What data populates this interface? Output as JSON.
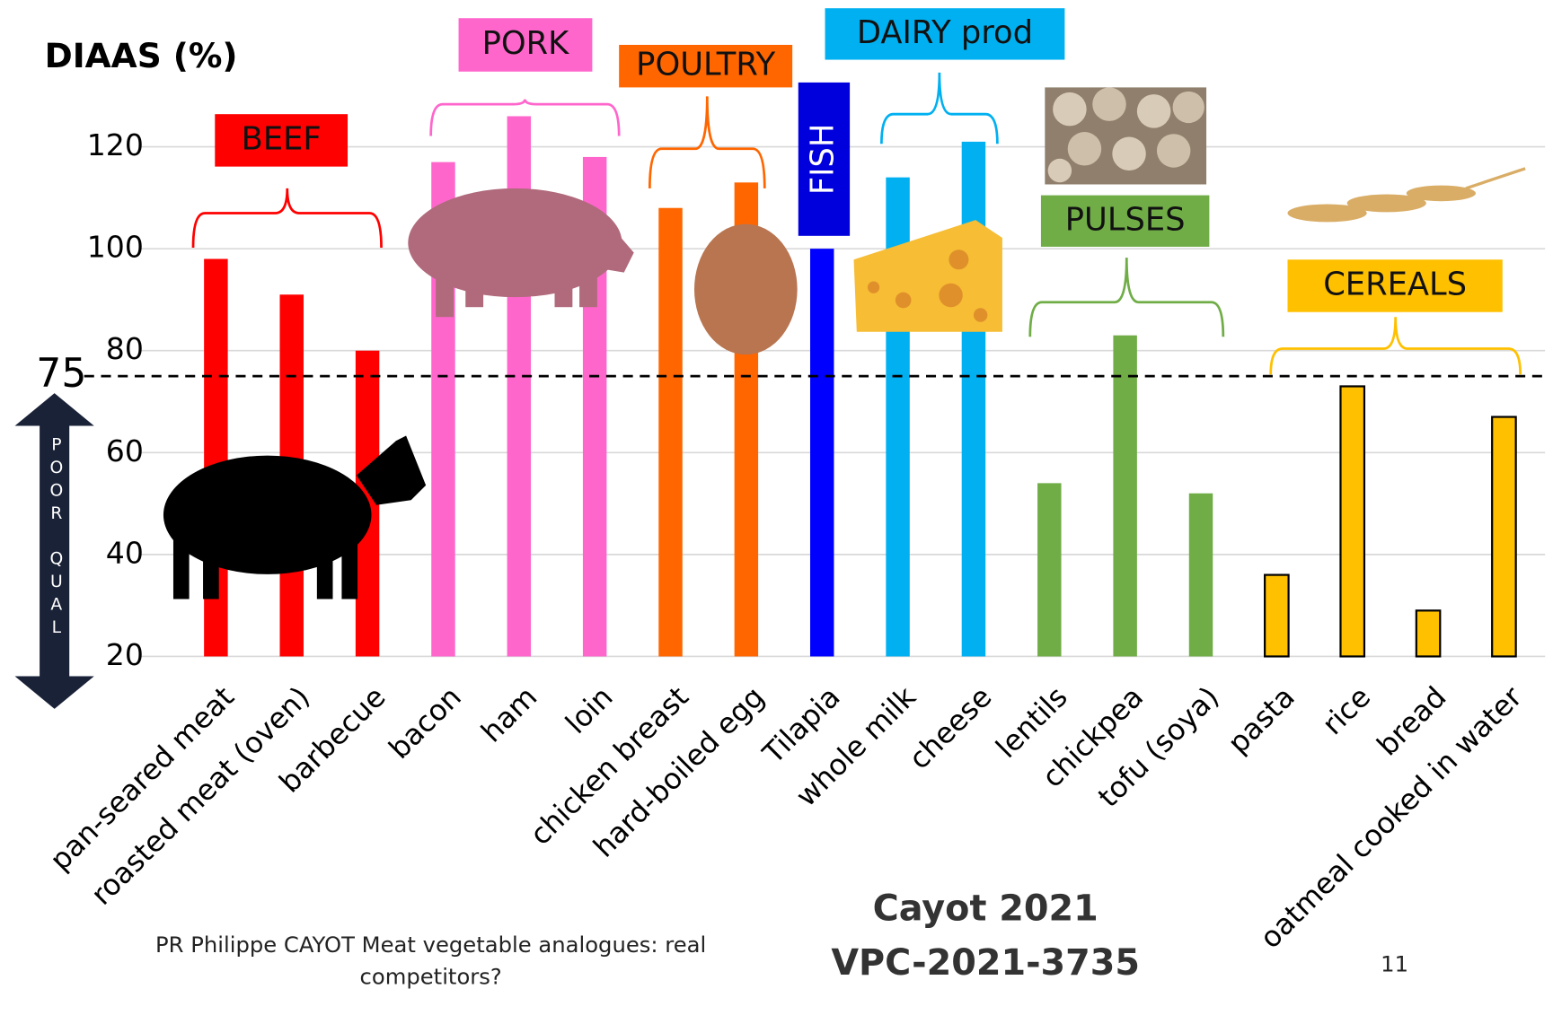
{
  "chart_data": {
    "type": "bar",
    "title": "DIAAS (%)",
    "ylim": [
      20,
      130
    ],
    "yticks": [
      20,
      40,
      60,
      80,
      100,
      120
    ],
    "grid": true,
    "threshold": 75,
    "threshold_note": "POOR QUAL",
    "series": [
      {
        "name": "BEEF",
        "color": "#ff0000",
        "categories": [
          "pan-seared meat",
          "roasted meat (oven)",
          "barbecue"
        ],
        "values": [
          98,
          91,
          80
        ]
      },
      {
        "name": "PORK",
        "color": "#ff66cc",
        "categories": [
          "bacon",
          "ham",
          "loin"
        ],
        "values": [
          117,
          126,
          118
        ]
      },
      {
        "name": "POULTRY",
        "color": "#ff6600",
        "categories": [
          "chicken breast",
          "hard-boiled egg"
        ],
        "values": [
          108,
          113
        ]
      },
      {
        "name": "FISH",
        "color": "#0000ff",
        "categories": [
          "Tilapia"
        ],
        "values": [
          100
        ]
      },
      {
        "name": "DAIRY prod",
        "color": "#00b0f0",
        "categories": [
          "whole milk",
          "cheese"
        ],
        "values": [
          114,
          121
        ]
      },
      {
        "name": "PULSES",
        "color": "#70ad47",
        "categories": [
          "lentils",
          "chickpea",
          "tofu (soya)"
        ],
        "values": [
          54,
          83,
          52
        ]
      },
      {
        "name": "CEREALS",
        "color": "#ffc000",
        "categories": [
          "pasta",
          "rice",
          "bread",
          "oatmeal cooked in water"
        ],
        "values": [
          36,
          73,
          29,
          67
        ]
      }
    ]
  },
  "footer": {
    "author": "PR Philippe CAYOT Meat vegetable analogues: real competitors?",
    "reference": "Cayot 2021",
    "code": "VPC-2021-3735",
    "page_number": "11"
  }
}
